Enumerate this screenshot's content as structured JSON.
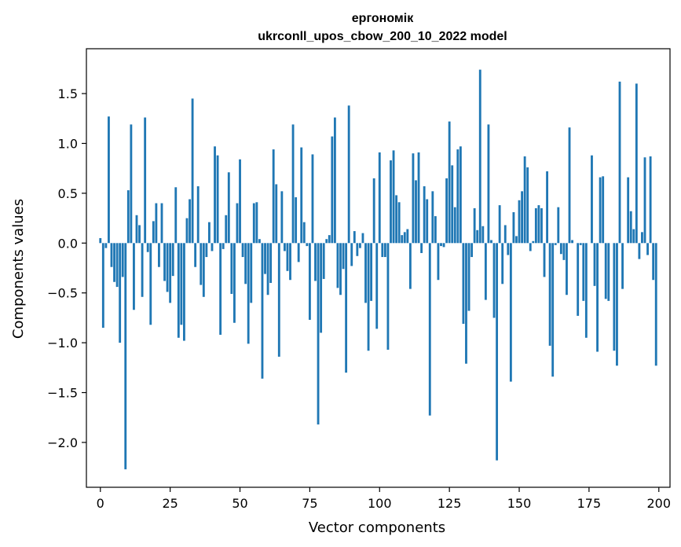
{
  "chart_data": {
    "type": "bar",
    "title": "ергономік",
    "subtitle": "ukrconll_upos_cbow_200_10_2022 model",
    "xlabel": "Vector components",
    "ylabel": "Components values",
    "xlim": [
      -5,
      204
    ],
    "ylim": [
      -2.45,
      1.95
    ],
    "x_ticks": [
      0,
      25,
      50,
      75,
      100,
      125,
      150,
      175,
      200
    ],
    "y_ticks": [
      -2.0,
      -1.5,
      -1.0,
      -0.5,
      0.0,
      0.5,
      1.0,
      1.5
    ],
    "y_tick_labels": [
      "−2.0",
      "−1.5",
      "−1.0",
      "−0.5",
      "0.0",
      "0.5",
      "1.0",
      "1.5"
    ],
    "grid": false,
    "color": "#1f77b4",
    "values": [
      0.05,
      -0.85,
      -0.05,
      1.27,
      -0.24,
      -0.39,
      -0.44,
      -1.0,
      -0.34,
      -2.27,
      0.53,
      1.19,
      -0.67,
      0.28,
      0.18,
      -0.54,
      1.26,
      -0.09,
      -0.82,
      0.22,
      0.4,
      -0.24,
      0.4,
      -0.38,
      -0.49,
      -0.6,
      -0.33,
      0.56,
      -0.95,
      -0.82,
      -0.98,
      0.25,
      0.44,
      1.45,
      -0.24,
      0.57,
      -0.42,
      -0.54,
      -0.14,
      0.21,
      -0.08,
      0.97,
      0.88,
      -0.92,
      -0.06,
      0.28,
      0.71,
      -0.51,
      -0.8,
      0.4,
      0.84,
      -0.14,
      -0.41,
      -1.01,
      -0.6,
      0.4,
      0.41,
      0.04,
      -1.36,
      -0.31,
      -0.52,
      -0.4,
      0.94,
      0.59,
      -1.14,
      0.52,
      -0.08,
      -0.28,
      -0.37,
      1.19,
      0.46,
      -0.19,
      0.96,
      0.21,
      -0.03,
      -0.77,
      0.89,
      -0.38,
      -1.82,
      -0.9,
      -0.36,
      0.04,
      0.08,
      1.07,
      1.26,
      -0.45,
      -0.52,
      -0.26,
      -1.3,
      1.38,
      -0.23,
      0.12,
      -0.13,
      -0.05,
      0.1,
      -0.6,
      -1.08,
      -0.58,
      0.65,
      -0.86,
      0.91,
      -0.14,
      -0.14,
      -1.07,
      0.83,
      0.93,
      0.48,
      0.41,
      0.08,
      0.11,
      0.14,
      -0.46,
      0.9,
      0.63,
      0.91,
      -0.1,
      0.57,
      0.44,
      -1.73,
      0.52,
      0.27,
      -0.37,
      -0.03,
      -0.04,
      0.65,
      1.22,
      0.78,
      0.36,
      0.94,
      0.97,
      -0.81,
      -1.21,
      -0.68,
      -0.14,
      0.35,
      0.13,
      1.74,
      0.17,
      -0.57,
      1.19,
      0.03,
      -0.75,
      -2.18,
      0.38,
      -0.41,
      0.18,
      -0.12,
      -1.39,
      0.31,
      0.07,
      0.43,
      0.52,
      0.87,
      0.76,
      -0.08,
      0.02,
      0.35,
      0.38,
      0.35,
      -0.34,
      0.72,
      -1.03,
      -1.34,
      -0.02,
      0.36,
      -0.11,
      -0.17,
      -0.52,
      1.16,
      0.03,
      0.0,
      -0.73,
      -0.02,
      -0.58,
      -0.95,
      0.0,
      0.88,
      -0.43,
      -1.09,
      0.66,
      0.67,
      -0.56,
      -0.58,
      0.0,
      -1.08,
      -1.23,
      1.62,
      -0.46,
      0.0,
      0.66,
      0.32,
      0.14,
      1.6,
      -0.16,
      0.11,
      0.86,
      -0.12,
      0.87,
      -0.37,
      -1.23
    ]
  }
}
